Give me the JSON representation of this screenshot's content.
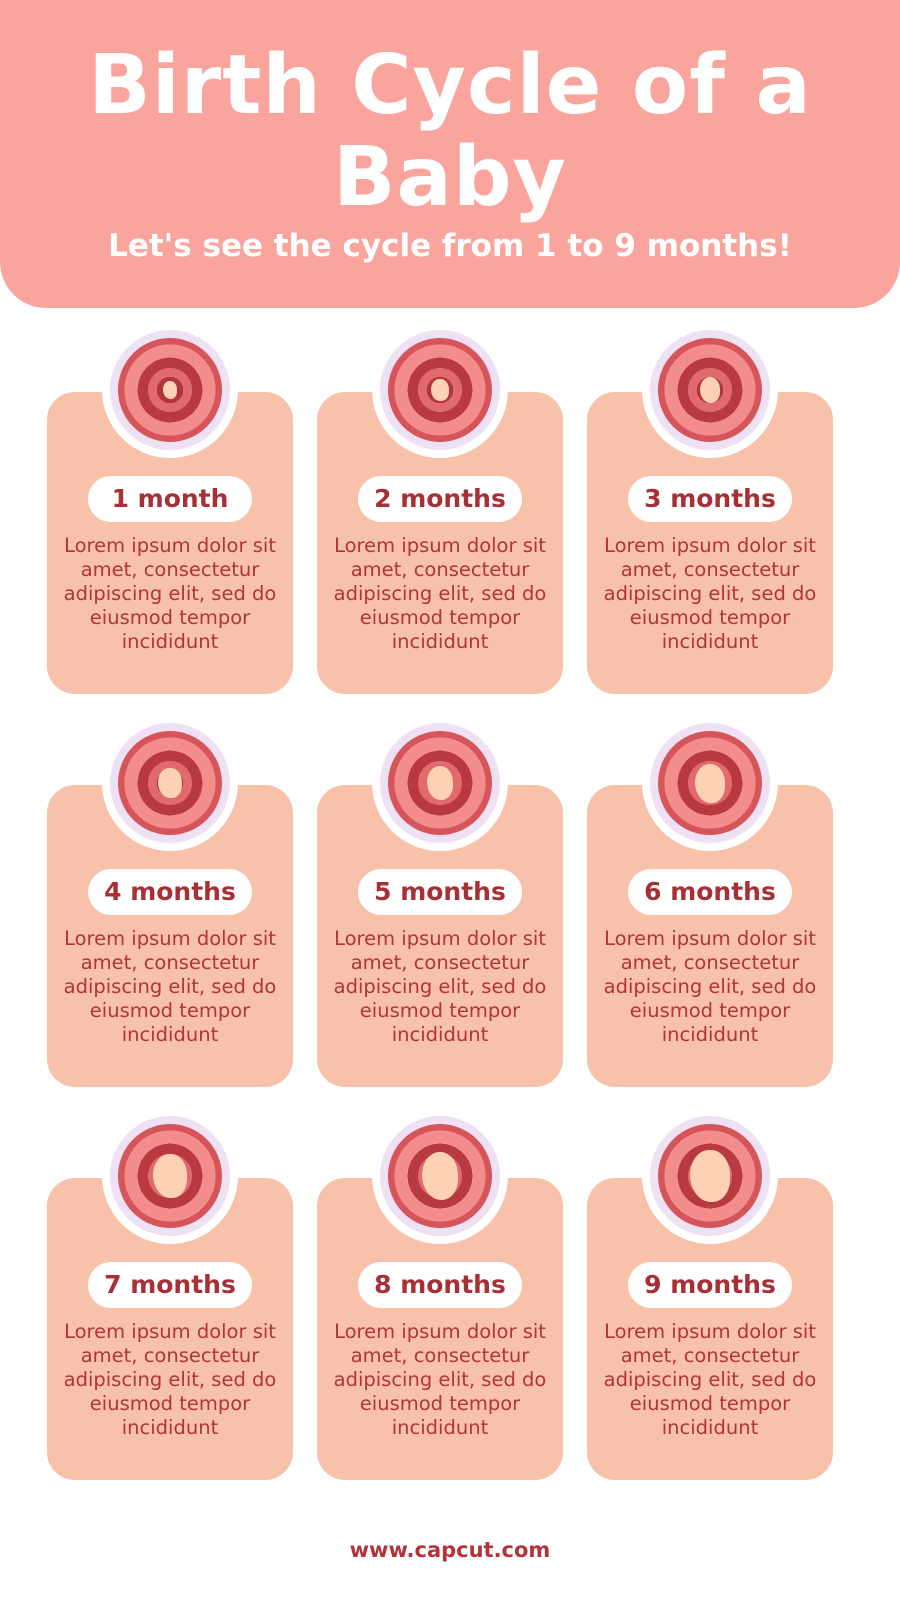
{
  "header": {
    "title_line1": "Birth Cycle of a",
    "title_line2": "Baby",
    "subtitle": "Let's see the cycle from 1 to 9 months!"
  },
  "colors": {
    "header": "#f9a59d",
    "card": "#f8c2aa",
    "text": "#b2333b",
    "ring": "#efe1f4"
  },
  "stages": [
    {
      "label": "1 month",
      "description": "Lorem ipsum dolor sit amet, consectetur adipiscing elit, sed do eiusmod tempor incididunt",
      "icon": "fetus-1-month-icon"
    },
    {
      "label": "2 months",
      "description": "Lorem ipsum dolor sit amet, consectetur adipiscing elit, sed do eiusmod tempor incididunt",
      "icon": "fetus-2-months-icon"
    },
    {
      "label": "3 months",
      "description": "Lorem ipsum dolor sit amet, consectetur adipiscing elit, sed do eiusmod tempor incididunt",
      "icon": "fetus-3-months-icon"
    },
    {
      "label": "4 months",
      "description": "Lorem ipsum dolor sit amet, consectetur adipiscing elit, sed do eiusmod tempor incididunt",
      "icon": "fetus-4-months-icon"
    },
    {
      "label": "5 months",
      "description": "Lorem ipsum dolor sit amet, consectetur adipiscing elit, sed do eiusmod tempor incididunt",
      "icon": "fetus-5-months-icon"
    },
    {
      "label": "6 months",
      "description": "Lorem ipsum dolor sit amet, consectetur adipiscing elit, sed do eiusmod tempor incididunt",
      "icon": "fetus-6-months-icon"
    },
    {
      "label": "7 months",
      "description": "Lorem ipsum dolor sit amet, consectetur adipiscing elit, sed do eiusmod tempor incididunt",
      "icon": "fetus-7-months-icon"
    },
    {
      "label": "8 months",
      "description": "Lorem ipsum dolor sit amet, consectetur adipiscing elit, sed do eiusmod tempor incididunt",
      "icon": "fetus-8-months-icon"
    },
    {
      "label": "9 months",
      "description": "Lorem ipsum dolor sit amet, consectetur adipiscing elit, sed do eiusmod tempor incididunt",
      "icon": "fetus-9-months-icon"
    }
  ],
  "footer": {
    "url": "www.capcut.com"
  }
}
